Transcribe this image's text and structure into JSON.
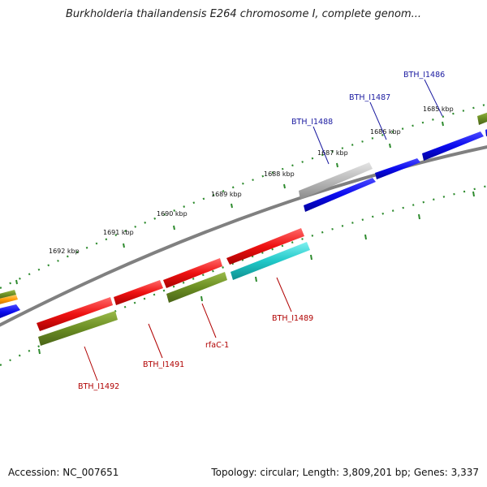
{
  "title": "Burkholderia thailandensis E264 chromosome I, complete genom...",
  "footer": {
    "accession": "Accession: NC_007651",
    "topology": "Topology: circular; Length: 3,809,201 bp; Genes: 3,337"
  },
  "scale": {
    "labels": [
      "1685 kbp",
      "1686 kbp",
      "1687 kbp",
      "1688 kbp",
      "1689 kbp",
      "1690 kbp",
      "1691 kbp",
      "1692 kbp"
    ]
  },
  "genes_top": [
    "BTH_I1486",
    "BTH_I1487",
    "BTH_I1488"
  ],
  "genes_bottom": [
    "BTH_I1489",
    "rfaC-1",
    "BTH_I1491",
    "BTH_I1492"
  ],
  "colors": {
    "red": "#ee1111",
    "blue": "#0a0aee",
    "olive": "#6b8e23",
    "cyan": "#20c8c8",
    "gray": "#b8b8b8",
    "orange": "#ff9a00",
    "dots": "#2e8b2e",
    "backbone": "#808080"
  }
}
